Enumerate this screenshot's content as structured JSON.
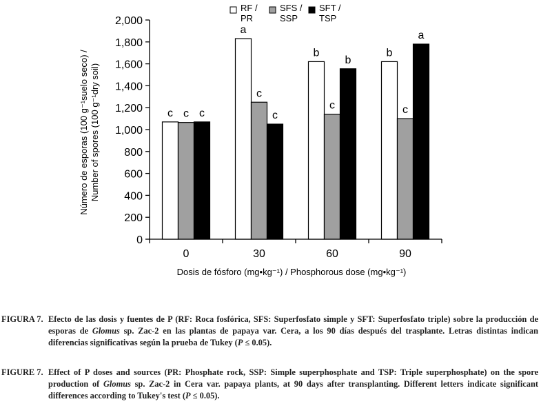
{
  "chart_data": {
    "type": "bar",
    "categories": [
      "0",
      "30",
      "60",
      "90"
    ],
    "series": [
      {
        "name": "RF / PR",
        "color": "#ffffff",
        "values": [
          1070,
          1830,
          1620,
          1620
        ],
        "letters": [
          "c",
          "a",
          "b",
          "b"
        ]
      },
      {
        "name": "SFS / SSP",
        "color": "#a0a0a0",
        "values": [
          1065,
          1250,
          1140,
          1100
        ],
        "letters": [
          "c",
          "c",
          "c",
          "c"
        ]
      },
      {
        "name": "SFT / TSP",
        "color": "#000000",
        "values": [
          1070,
          1050,
          1555,
          1780
        ],
        "letters": [
          "c",
          "c",
          "b",
          "a"
        ]
      }
    ],
    "legend": [
      {
        "line1": "RF /",
        "line2": "PR"
      },
      {
        "line1": "SFS /",
        "line2": "SSP"
      },
      {
        "line1": "SFT /",
        "line2": "TSP"
      }
    ],
    "legend_position": "top-right",
    "ylim": [
      0,
      2000
    ],
    "yticks": [
      "0",
      "200",
      "400",
      "600",
      "800",
      "1,000",
      "1,200",
      "1,400",
      "1,600",
      "1,800",
      "2,000"
    ],
    "ylabel_line1": "Número de esporas (100 g⁻¹suelo seco) /",
    "ylabel_line2": "Number of spores (100 g⁻¹dry soil)",
    "xlabel": "Dosis de fósforo (mg•kg⁻¹) / Phosphorous dose (mg•kg⁻¹)",
    "grid": false
  },
  "captions": {
    "es_label": "FIGURA 7.",
    "es_part1": "Efecto de las dosis y fuentes de P (RF: Roca fosfórica, SFS: Superfosfato simple y SFT: Superfosfato triple) sobre la producción de esporas de ",
    "es_genus": "Glomus",
    "es_part2": " sp. Zac-2 en las plantas de papaya var. Cera, a los 90 días después del trasplante. Letras distintas indican diferencias significativas según la prueba de Tukey (",
    "es_p": "P",
    "es_part3": " ≤ 0.05).",
    "en_label": "FIGURE 7.",
    "en_part1": "Effect of P doses and sources (PR: Phosphate rock, SSP: Simple superphosphate and TSP: Triple superphosphate) on the spore production of ",
    "en_genus": "Glomus",
    "en_part2": " sp. Zac-2 in Cera var. papaya plants, at 90 days after transplanting. Different letters indicate significant differences according to Tukey's test (",
    "en_p": "P",
    "en_part3": " ≤ 0.05)."
  }
}
